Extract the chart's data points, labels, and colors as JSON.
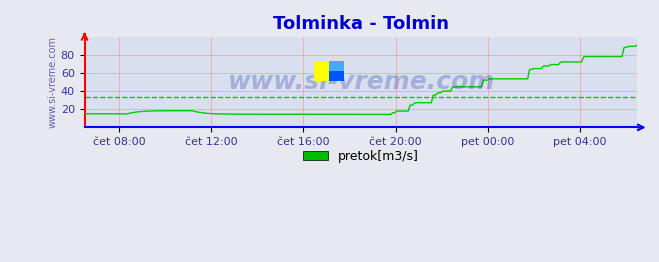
{
  "title": "Tolminka - Tolmin",
  "title_color": "#0000cc",
  "title_fontsize": 13,
  "bg_color": "#e8e8f0",
  "plot_bg_color": "#d8e0f0",
  "line_color": "#00cc00",
  "avg_line_color": "#00cc00",
  "avg_line_value": 33.5,
  "ylabel_text": "www.si-vreme.com",
  "ylabel_color": "#6666aa",
  "ylim": [
    0,
    100
  ],
  "yticks": [
    20,
    40,
    60,
    80
  ],
  "legend_label": "pretok[m3/s]",
  "legend_color": "#00bb00",
  "x_labels": [
    "čet 08:00",
    "čet 12:00",
    "čet 16:00",
    "čet 20:00",
    "pet 00:00",
    "pet 04:00"
  ],
  "grid_color_h": "#ff9999",
  "grid_color_v": "#ff9999",
  "axis_color_bottom": "#0000ff",
  "axis_color_left": "#ff0000",
  "watermark": "www.si-vreme.com",
  "watermark_color": "#1a1a99",
  "watermark_alpha": 0.25
}
